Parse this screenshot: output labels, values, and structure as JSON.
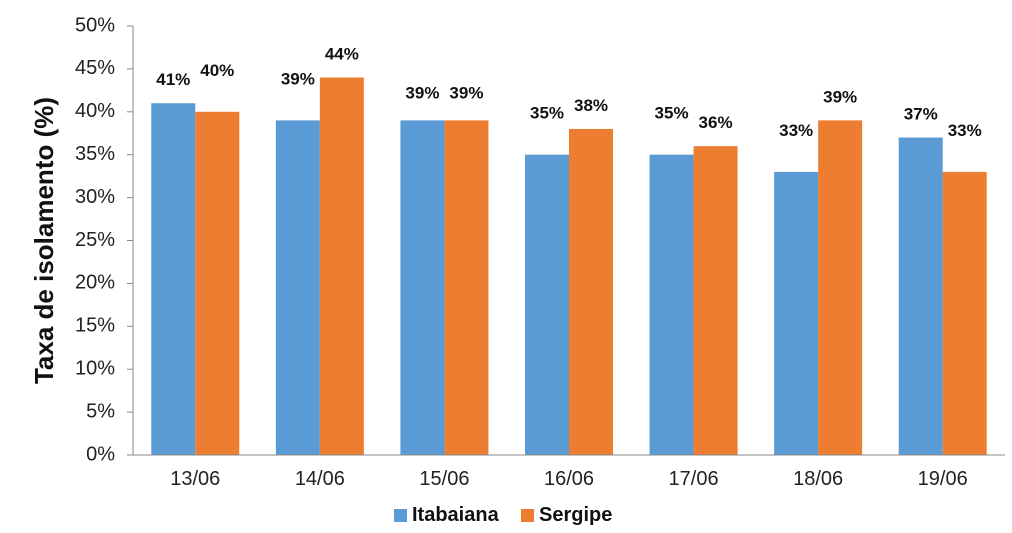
{
  "chart_data": {
    "type": "bar",
    "categories": [
      "13/06",
      "14/06",
      "15/06",
      "16/06",
      "17/06",
      "18/06",
      "19/06"
    ],
    "series": [
      {
        "name": "Itabaiana",
        "color": "#5B9BD5",
        "values": [
          41,
          39,
          39,
          35,
          35,
          33,
          37
        ]
      },
      {
        "name": "Sergipe",
        "color": "#ED7D31",
        "values": [
          40,
          44,
          39,
          38,
          36,
          39,
          33
        ]
      }
    ],
    "data_labels": {
      "Itabaiana": [
        "41%",
        "39%",
        "39%",
        "35%",
        "35%",
        "33%",
        "37%"
      ],
      "Sergipe": [
        "40%",
        "44%",
        "39%",
        "38%",
        "36%",
        "39%",
        "33%"
      ]
    },
    "ylabel": "Taxa de isolamento (%)",
    "xlabel": "",
    "ylim": [
      0,
      50
    ],
    "yticks": [
      0,
      5,
      10,
      15,
      20,
      25,
      30,
      35,
      40,
      45,
      50
    ],
    "ytick_labels": [
      "0%",
      "5%",
      "10%",
      "15%",
      "20%",
      "25%",
      "30%",
      "35%",
      "40%",
      "45%",
      "50%"
    ],
    "grid": false,
    "legend": {
      "placement": "bottom",
      "entries": [
        "Itabaiana",
        "Sergipe"
      ]
    }
  }
}
